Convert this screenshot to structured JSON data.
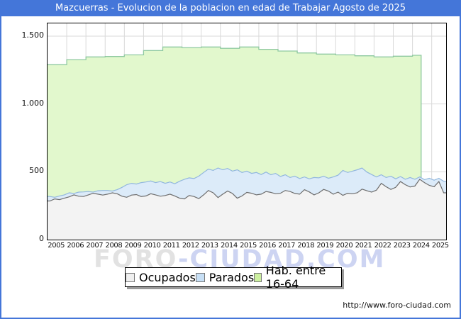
{
  "title": "Mazcuerras - Evolucion de la poblacion en edad de Trabajar Agosto de 2025",
  "footer_url": "http://www.foro-ciudad.com",
  "watermark": {
    "part1": "FORO",
    "part2": "-CIUDAD.COM"
  },
  "colors": {
    "frame_blue": "#4476d9",
    "grid": "#d9d9d9",
    "plot_border": "#000000",
    "hab_fill": "#e2f8cd",
    "hab_stroke": "#8fc9a1",
    "parados_fill": "#dcebf9",
    "parados_stroke": "#92b7de",
    "ocupados_fill": "#f3f3f3",
    "ocupados_stroke": "#6e6e6e"
  },
  "axis": {
    "y_ticks": [
      "0",
      "500",
      "1.000",
      "1.500"
    ],
    "y_tick_values": [
      0,
      500,
      1000,
      1500
    ],
    "x_labels": [
      "2005",
      "2006",
      "2007",
      "2008",
      "2009",
      "2010",
      "2011",
      "2012",
      "2013",
      "2014",
      "2015",
      "2016",
      "2017",
      "2018",
      "2019",
      "2020",
      "2021",
      "2022",
      "2023",
      "2024",
      "2025"
    ]
  },
  "legend": {
    "items": [
      {
        "label": "Ocupados",
        "color": "#efefef",
        "border": "#777777"
      },
      {
        "label": "Parados",
        "color": "#c7dff5",
        "border": "#777777"
      },
      {
        "label": "Hab. entre 16-64",
        "color": "#cdf0a0",
        "border": "#777777"
      }
    ]
  },
  "chart_data": {
    "type": "area",
    "title": "Mazcuerras - Evolucion de la poblacion en edad de Trabajar Agosto de 2025",
    "xlabel": "",
    "ylabel": "",
    "x_range_years": [
      2005,
      2025.75
    ],
    "ylim": [
      0,
      1575
    ],
    "grid": true,
    "legend_position": "bottom",
    "series": [
      {
        "name": "Hab. entre 16-64",
        "kind": "annual-steps",
        "years": [
          2005,
          2006,
          2007,
          2008,
          2009,
          2010,
          2011,
          2012,
          2013,
          2014,
          2015,
          2016,
          2017,
          2018,
          2019,
          2020,
          2021,
          2022,
          2023,
          2024
        ],
        "values": [
          1290,
          1327,
          1347,
          1350,
          1362,
          1394,
          1420,
          1416,
          1420,
          1410,
          1420,
          1403,
          1390,
          1376,
          1368,
          1362,
          1355,
          1347,
          1352,
          1359
        ],
        "ends_at_year": 2024.45
      },
      {
        "name": "Parados",
        "kind": "quarterly-upper-boundary",
        "start_year": 2005,
        "points_per_year": 4,
        "values": [
          318,
          312,
          322,
          330,
          345,
          340,
          350,
          352,
          355,
          350,
          360,
          362,
          362,
          358,
          368,
          385,
          405,
          415,
          410,
          420,
          425,
          432,
          420,
          428,
          415,
          425,
          412,
          430,
          445,
          455,
          450,
          468,
          495,
          520,
          510,
          528,
          515,
          525,
          505,
          515,
          495,
          505,
          488,
          495,
          480,
          498,
          478,
          488,
          465,
          478,
          458,
          468,
          450,
          462,
          448,
          458,
          455,
          468,
          452,
          462,
          475,
          510,
          495,
          505,
          515,
          528,
          498,
          480,
          462,
          478,
          458,
          468,
          448,
          465,
          445,
          458,
          445,
          462,
          442,
          452,
          438,
          452,
          430
        ]
      },
      {
        "name": "Ocupados",
        "kind": "quarterly",
        "start_year": 2005,
        "points_per_year": 4,
        "values": [
          285,
          300,
          295,
          305,
          315,
          330,
          320,
          318,
          330,
          342,
          335,
          328,
          335,
          345,
          338,
          320,
          312,
          328,
          332,
          318,
          322,
          338,
          330,
          320,
          325,
          335,
          322,
          305,
          300,
          325,
          318,
          302,
          330,
          362,
          345,
          310,
          335,
          358,
          340,
          305,
          322,
          348,
          342,
          330,
          335,
          355,
          348,
          338,
          342,
          362,
          355,
          340,
          335,
          368,
          352,
          330,
          345,
          370,
          358,
          335,
          350,
          326,
          342,
          338,
          345,
          372,
          360,
          350,
          365,
          415,
          390,
          370,
          385,
          428,
          405,
          388,
          395,
          445,
          420,
          400,
          390,
          428,
          345
        ]
      }
    ]
  }
}
